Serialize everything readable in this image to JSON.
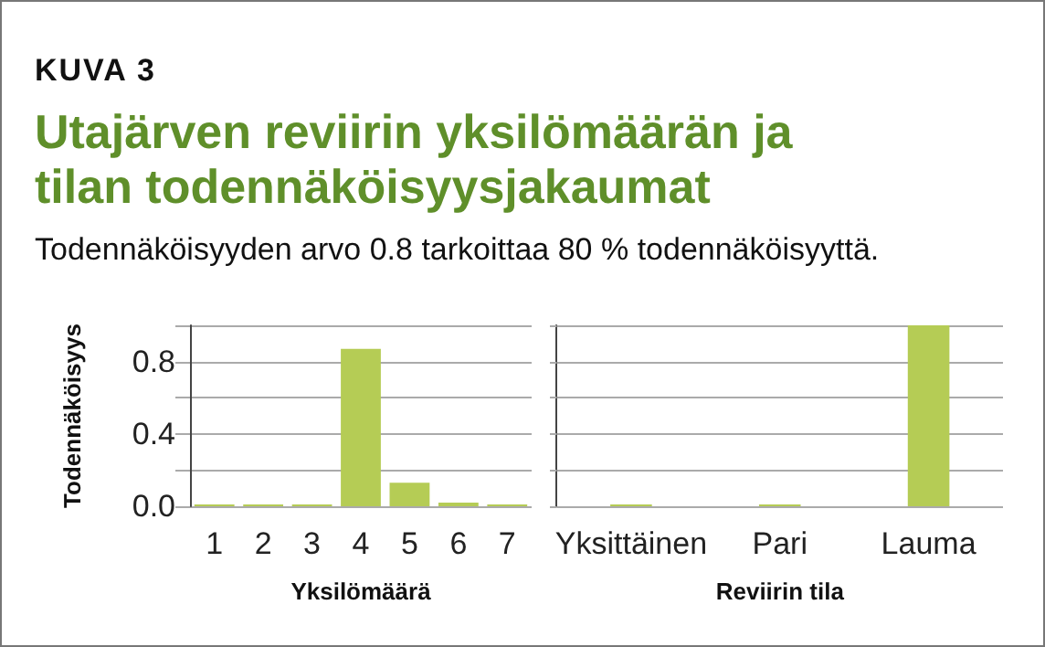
{
  "chart_data": [
    {
      "type": "bar",
      "title": "Utajärven reviirin yksilömäärän ja tilan todennäköisyysjakaumat",
      "subtitle": "Todennäköisyyden arvo 0.8 tarkoittaa 80 % todennäköisyyttä.",
      "annotations": [
        "KUVA 3"
      ],
      "xlabel": "Yksilömäärä",
      "ylabel": "Todennäköisyys",
      "categories": [
        "1",
        "2",
        "3",
        "4",
        "5",
        "6",
        "7"
      ],
      "values": [
        0.01,
        0.01,
        0.01,
        0.87,
        0.13,
        0.02,
        0.01
      ],
      "color": "#b5cc55",
      "ylim": [
        0,
        1
      ],
      "yticks": [
        {
          "value": 0,
          "label": "0.0"
        },
        {
          "value": 0.2,
          "label": null
        },
        {
          "value": 0.4,
          "label": "0.4"
        },
        {
          "value": 0.6,
          "label": null
        },
        {
          "value": 0.8,
          "label": "0.8"
        },
        {
          "value": 1,
          "label": null
        }
      ],
      "grid": "y"
    },
    {
      "type": "bar",
      "xlabel": "Reviirin tila",
      "categories": [
        "Yksittäinen",
        "Pari",
        "Lauma"
      ],
      "values": [
        0.01,
        0.01,
        1
      ],
      "color": "#b5cc55",
      "ylim": [
        0,
        1
      ],
      "yticks": [
        {
          "value": 0,
          "label": null
        },
        {
          "value": 0.2,
          "label": null
        },
        {
          "value": 0.4,
          "label": null
        },
        {
          "value": 0.6,
          "label": null
        },
        {
          "value": 0.8,
          "label": null
        },
        {
          "value": 1,
          "label": null
        }
      ],
      "grid": "y",
      "tick_labels": "x"
    }
  ]
}
